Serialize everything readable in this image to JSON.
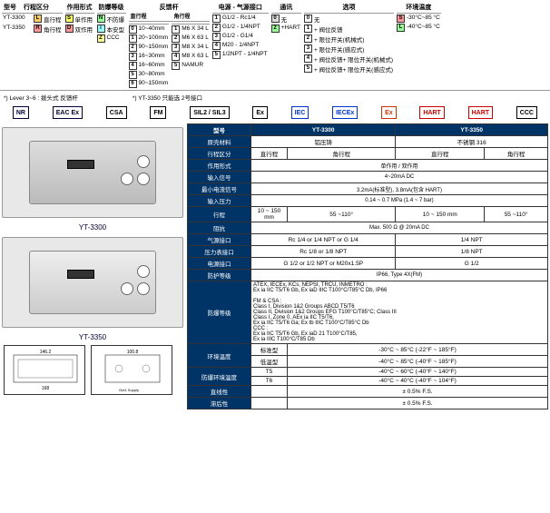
{
  "top": {
    "headers": [
      "型号",
      "行程区分",
      "作用形式",
      "防爆等级",
      "直行程",
      "角行程",
      "电源 - 气源接口",
      "通讯",
      "选项",
      "环境温度"
    ],
    "c1": [
      {
        "b": "L",
        "c": "#fc6",
        "t": "直行程"
      },
      {
        "b": "R",
        "c": "#f99",
        "t": "角行程"
      }
    ],
    "c1a": [
      "YT-3300",
      "YT-3350"
    ],
    "c2": [
      {
        "b": "S",
        "c": "#ff6",
        "t": "单作用"
      },
      {
        "b": "D",
        "c": "#f99",
        "t": "双作用"
      }
    ],
    "c3": [
      {
        "b": "N",
        "c": "#9f9",
        "t": "不防爆"
      },
      {
        "b": "i",
        "c": "#9ff",
        "t": "本安型"
      },
      {
        "b": "Z",
        "c": "#ff9",
        "t": "CCC"
      }
    ],
    "c4": [
      {
        "b": "0",
        "t": "10~40mm"
      },
      {
        "b": "1",
        "t": "20~100mm"
      },
      {
        "b": "2",
        "t": "90~150mm"
      },
      {
        "b": "3",
        "t": "16~30mm"
      },
      {
        "b": "4",
        "t": "16~60mm"
      },
      {
        "b": "5",
        "t": "30~80mm"
      },
      {
        "b": "6",
        "t": "90~150mm"
      }
    ],
    "c5": [
      {
        "b": "1",
        "t": "M6 X 34 L"
      },
      {
        "b": "2",
        "t": "M6 X 63 L"
      },
      {
        "b": "3",
        "t": "M8 X 34 L"
      },
      {
        "b": "4",
        "t": "M8 X 63 L"
      },
      {
        "b": "5",
        "t": "NAMUR"
      }
    ],
    "c6": [
      {
        "b": "1",
        "t": "G1/2 - Rc1/4"
      },
      {
        "b": "2",
        "t": "G1/2 - 1/4NPT"
      },
      {
        "b": "3",
        "t": "G1/2 - G1/4"
      },
      {
        "b": "4",
        "t": "M20 - 1/4NPT"
      },
      {
        "b": "5",
        "t": "1/2NPT - 1/4NPT"
      }
    ],
    "c7": [
      {
        "b": "0",
        "c": "#ddd",
        "t": "无"
      },
      {
        "b": "2",
        "c": "#9f9",
        "t": "+HART"
      }
    ],
    "c8": [
      {
        "b": "0",
        "t": "无"
      },
      {
        "b": "1",
        "t": "+ 阀位反馈"
      },
      {
        "b": "2",
        "t": "+ 限位开关(机械式)"
      },
      {
        "b": "3",
        "t": "+ 限位开关(感应式)"
      },
      {
        "b": "4",
        "t": "+ 阀位反馈+ 限位开关(机械式)"
      },
      {
        "b": "5",
        "t": "+ 阀位反馈+ 限位开关(感应式)"
      }
    ],
    "c9": [
      {
        "b": "S",
        "c": "#f99",
        "t": "-30°C~85 °C"
      },
      {
        "b": "L",
        "c": "#9f9",
        "t": "-40°C~85 °C"
      }
    ]
  },
  "notes": [
    "*) Lever 3~6 : 拨头式 反馈杆",
    "*) YT-3350 只能选 2号接口"
  ],
  "certs": [
    "NR",
    "EAC Ex",
    "CSA",
    "FM",
    "SIL2 / SIL3",
    "Ex",
    "IEC",
    "IECEx",
    "Ex",
    "HART",
    "HART",
    "CCC"
  ],
  "prod": {
    "p1": "YT-3300",
    "p2": "YT-3350"
  },
  "spec": {
    "hdr": [
      "型号",
      "YT-3300",
      "YT-3350"
    ],
    "rows": [
      [
        "原壳材料",
        "铝压铸",
        "不锈钢 316"
      ],
      [
        "行程区分",
        "直行程",
        "角行程",
        "直行程",
        "角行程"
      ],
      [
        "作用形式",
        "单作用 / 双作用"
      ],
      [
        "输入信号",
        "4~20mA DC"
      ],
      [
        "最小电流信号",
        "3.2mA(标准型), 3.8mA(包含 HART)"
      ],
      [
        "输入压力",
        "0.14 ~ 0.7 MPa (1.4 ~ 7 bar)"
      ],
      [
        "行程",
        "10 ~ 150 mm",
        "55 ~110°",
        "10 ~ 150 mm",
        "55 ~110°"
      ],
      [
        "阻抗",
        "Max. 500 Ω @ 20mA DC"
      ],
      [
        "气源接口",
        "Rc 1/4 or 1/4 NPT or G 1/4",
        "1/4 NPT"
      ],
      [
        "压力表接口",
        "Rc 1/8 or 1/8 NPT",
        "1/8 NPT"
      ],
      [
        "电源接口",
        "G 1/2 or 1/2 NPT or M20x1.5P",
        "G 1/2"
      ],
      [
        "防护等级",
        "IP66, Type 4X(FM)"
      ],
      [
        "防爆等级",
        "ATEX, IECEx, KCs, NEPSI, TRCU, INMETRO :\n  Ex ia IIC T5/T6 Gb, Ex iaD IIIC T100°C/T85°C Db, IP66\n\nFM & CSA :\n  Class I, Division 1&2 Groups ABCD T5/T6\n  Class II, Division 1&2 Groups EFG T100°C/T85°C; Class III\n  Class I, Zone 0, AEx ia IIC T5/T6,\n  Ex ia IIC T5/T6 Ga; Ex tb IIIC T100°C/T85°C Db\nCCC :\n  Ex ia IIC T5/T6 Gb, Ex iaD 21 T100°C/T85,\n  Ex ia IIIC T100°C/T85 Db"
      ]
    ],
    "env": [
      [
        "环境温度",
        "标准型",
        "-30°C ~ 85°C (-22°F ~ 185°F)"
      ],
      [
        "",
        "低温型",
        "-40°C ~ 85°C (-40°F ~ 185°F)"
      ],
      [
        "防爆环境温度",
        "T5",
        "-40°C ~ 60°C (-40°F ~ 140°F)"
      ],
      [
        "",
        "T6",
        "-40°C ~ 40°C (-40°F ~ 104°F)"
      ],
      [
        "直线性",
        "",
        "± 0.5% F.S."
      ],
      [
        "滞后性",
        "",
        "± 0.5% F.S."
      ]
    ]
  }
}
